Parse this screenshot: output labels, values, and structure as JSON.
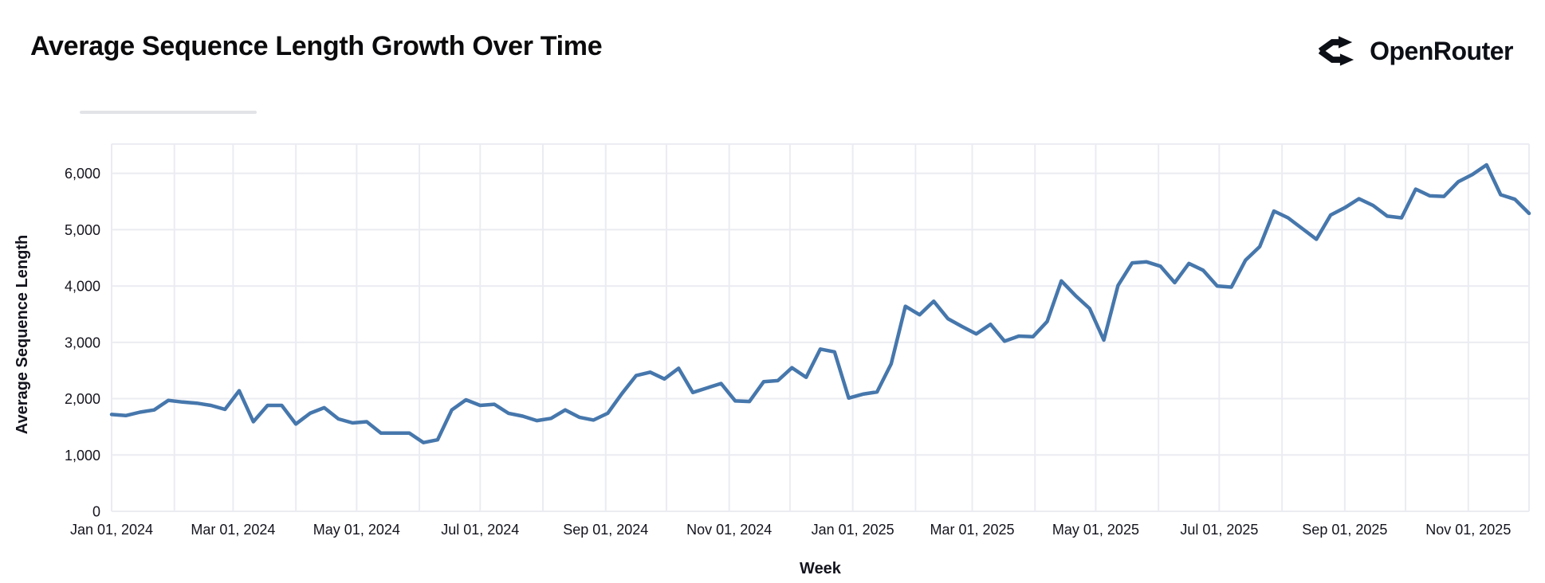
{
  "page": {
    "title": "Average Sequence Length Growth Over Time",
    "brand": "OpenRouter"
  },
  "colors": {
    "line": "#4677ac",
    "grid": "#ebecf2",
    "tick_text": "#14141e",
    "title_text": "#0b0b0d",
    "brand_mark": "#0c0f15",
    "background": "#ffffff"
  },
  "chart_data": {
    "type": "line",
    "title": "Average Sequence Length Growth Over Time",
    "xlabel": "Week",
    "ylabel": "Average Sequence Length",
    "legend": "none",
    "grid": true,
    "x_interval": "weekly",
    "x_start_date": "2024-01-01",
    "x_end_date": "2025-12-01",
    "n_points": 101,
    "x_tick_labels": [
      "Jan 01, 2024",
      "Mar 01, 2024",
      "May 01, 2024",
      "Jul 01, 2024",
      "Sep 01, 2024",
      "Nov 01, 2024",
      "Jan 01, 2025",
      "Mar 01, 2025",
      "May 01, 2025",
      "Jul 01, 2025",
      "Sep 01, 2025",
      "Nov 01, 2025"
    ],
    "y_ticks": [
      "0",
      "1,000",
      "2,000",
      "3,000",
      "4,000",
      "5,000",
      "6,000"
    ],
    "ylim": [
      0,
      6520
    ],
    "values": [
      1720,
      1700,
      1760,
      1800,
      1970,
      1940,
      1920,
      1880,
      1810,
      2140,
      1590,
      1880,
      1880,
      1550,
      1740,
      1840,
      1640,
      1570,
      1590,
      1390,
      1390,
      1390,
      1220,
      1270,
      1800,
      1980,
      1880,
      1900,
      1740,
      1690,
      1610,
      1650,
      1800,
      1670,
      1620,
      1740,
      2090,
      2410,
      2470,
      2350,
      2540,
      2110,
      2190,
      2270,
      1960,
      1950,
      2300,
      2320,
      2550,
      2380,
      2880,
      2830,
      2010,
      2080,
      2120,
      2620,
      3640,
      3490,
      3730,
      3420,
      3280,
      3150,
      3320,
      3020,
      3110,
      3100,
      3370,
      4090,
      3830,
      3600,
      3040,
      4010,
      4410,
      4430,
      4350,
      4060,
      4400,
      4280,
      4000,
      3980,
      4460,
      4700,
      5330,
      5210,
      5020,
      4830,
      5260,
      5390,
      5550,
      5430,
      5240,
      5210,
      5720,
      5600,
      5590,
      5850,
      5980,
      6150,
      5620,
      5540,
      5290
    ]
  }
}
